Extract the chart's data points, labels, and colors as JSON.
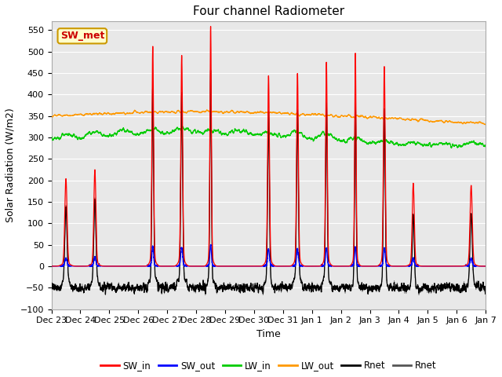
{
  "title": "Four channel Radiometer",
  "xlabel": "Time",
  "ylabel": "Solar Radiation (W/m2)",
  "ylim": [
    -100,
    570
  ],
  "yticks": [
    -100,
    -50,
    0,
    50,
    100,
    150,
    200,
    250,
    300,
    350,
    400,
    450,
    500,
    550
  ],
  "x_labels": [
    "Dec 23",
    "Dec 24",
    "Dec 25",
    "Dec 26",
    "Dec 27",
    "Dec 28",
    "Dec 29",
    "Dec 30",
    "Dec 31",
    "Jan 1",
    "Jan 2",
    "Jan 3",
    "Jan 4",
    "Jan 5",
    "Jan 6",
    "Jan 7"
  ],
  "annotation_text": "SW_met",
  "annotation_bg": "#ffffcc",
  "annotation_border": "#cc9900",
  "annotation_text_color": "#cc0000",
  "colors": {
    "SW_in": "#ff0000",
    "SW_out": "#0000ff",
    "LW_in": "#00cc00",
    "LW_out": "#ff9900",
    "Rnet_black": "#000000",
    "Rnet_dark": "#555555"
  },
  "legend_labels": [
    "SW_in",
    "SW_out",
    "LW_in",
    "LW_out",
    "Rnet",
    "Rnet"
  ],
  "plot_bg": "#e8e8e8",
  "grid_color": "#ffffff",
  "n_days": 15,
  "ppd": 288,
  "seed": 42,
  "SW_in_peaks": [
    195,
    215,
    0,
    490,
    470,
    535,
    0,
    425,
    430,
    455,
    475,
    445,
    185,
    0,
    180
  ],
  "SW_in_widths": [
    0.038,
    0.035,
    0,
    0.028,
    0.03,
    0.025,
    0,
    0.03,
    0.03,
    0.028,
    0.025,
    0.03,
    0.035,
    0,
    0.038
  ],
  "LW_in_base": 295,
  "LW_in_amplitude": 15,
  "LW_out_base": 345,
  "LW_out_amplitude": 15,
  "figsize": [
    6.4,
    4.8
  ],
  "dpi": 100
}
